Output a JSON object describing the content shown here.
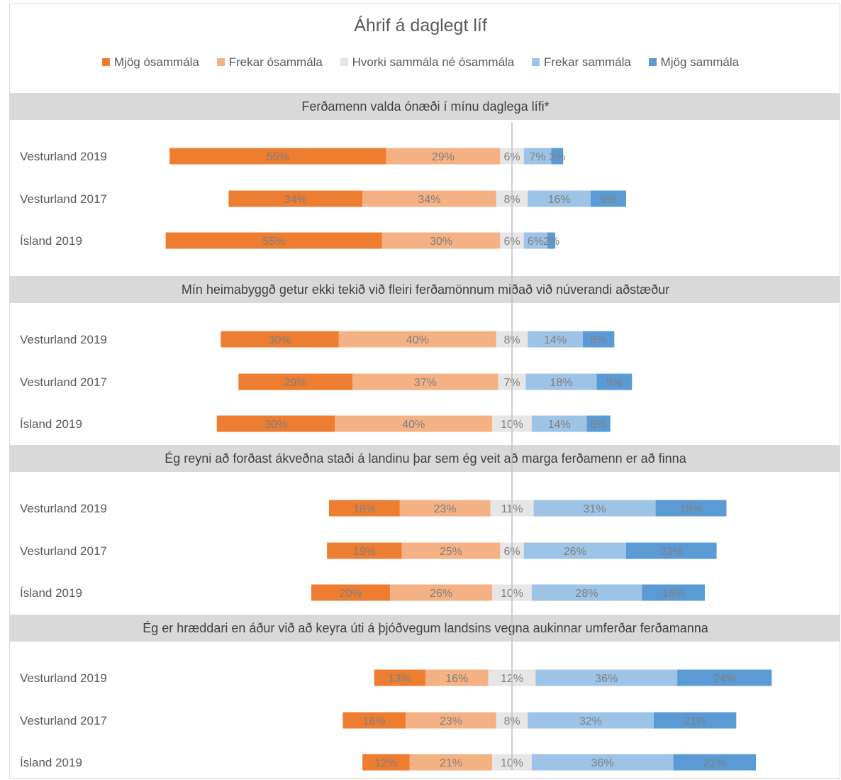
{
  "chart_data": {
    "type": "bar",
    "stacked": "diverging-horizontal",
    "title": "Áhrif á daglegt líf",
    "legend_position": "top",
    "legend": [
      {
        "name": "Mjög ósammála",
        "color": "#ED7D31"
      },
      {
        "name": "Frekar ósammála",
        "color": "#F4B183"
      },
      {
        "name": "Hvorki sammála né ósammála",
        "color": "#E7E6E6"
      },
      {
        "name": "Frekar sammála",
        "color": "#9DC3E6"
      },
      {
        "name": "Mjög sammála",
        "color": "#5B9BD5"
      }
    ],
    "panels": [
      {
        "title": "Ferðamenn valda ónæði í mínu daglega lífi*",
        "rows": [
          {
            "label": "Vesturland 2019",
            "values": [
              55,
              29,
              6,
              7,
              3
            ]
          },
          {
            "label": "Vesturland 2017",
            "values": [
              34,
              34,
              8,
              16,
              9
            ]
          },
          {
            "label": "Ísland 2019",
            "values": [
              55,
              30,
              6,
              6,
              2
            ]
          }
        ]
      },
      {
        "title": "Mín heimabyggð getur ekki tekið við fleiri ferðamönnum miðað við núverandi aðstæður",
        "rows": [
          {
            "label": "Vesturland 2019",
            "values": [
              30,
              40,
              8,
              14,
              8
            ]
          },
          {
            "label": "Vesturland 2017",
            "values": [
              29,
              37,
              7,
              18,
              9
            ]
          },
          {
            "label": "Ísland 2019",
            "values": [
              30,
              40,
              10,
              14,
              6
            ]
          }
        ]
      },
      {
        "title": "Ég reyni að forðast ákveðna staði á landinu þar sem ég veit að marga ferðamenn er að finna",
        "rows": [
          {
            "label": "Vesturland 2019",
            "values": [
              18,
              23,
              11,
              31,
              18
            ]
          },
          {
            "label": "Vesturland 2017",
            "values": [
              19,
              25,
              6,
              26,
              23
            ]
          },
          {
            "label": "Ísland 2019",
            "values": [
              20,
              26,
              10,
              28,
              16
            ]
          }
        ]
      },
      {
        "title": "Ég er hræddari en áður við að keyra úti á þjóðvegum landsins vegna aukinnar umferðar ferðamanna",
        "rows": [
          {
            "label": "Vesturland 2019",
            "values": [
              13,
              16,
              12,
              36,
              24
            ]
          },
          {
            "label": "Vesturland 2017",
            "values": [
              16,
              23,
              8,
              32,
              21
            ]
          },
          {
            "label": "Ísland 2019",
            "values": [
              12,
              21,
              10,
              36,
              21
            ]
          }
        ]
      }
    ],
    "value_suffix": "%"
  }
}
